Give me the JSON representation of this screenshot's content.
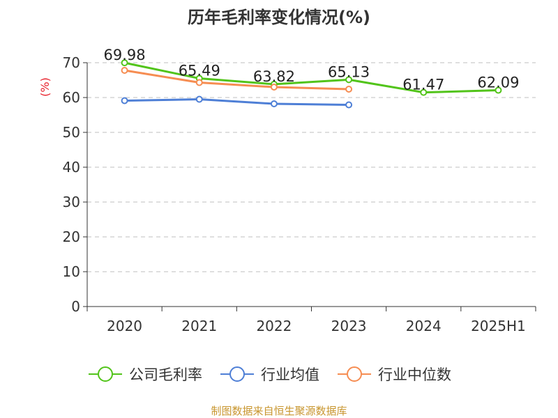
{
  "chart_data": {
    "type": "line",
    "title": "历年毛利率变化情况(%)",
    "ylabel": "(%)",
    "xlabel": "",
    "categories": [
      "2020",
      "2021",
      "2022",
      "2023",
      "2024",
      "2025H1"
    ],
    "ylim": [
      0,
      70
    ],
    "yticks": [
      0,
      10,
      20,
      30,
      40,
      50,
      60,
      70
    ],
    "grid": true,
    "legend_position": "bottom",
    "series": [
      {
        "name": "公司毛利率",
        "color": "#52c41a",
        "values": [
          69.98,
          65.49,
          63.82,
          65.13,
          61.47,
          62.09
        ],
        "labels": [
          "69.98",
          "65.49",
          "63.82",
          "65.13",
          "61.47",
          "62.09"
        ]
      },
      {
        "name": "行业均值",
        "color": "#4e7fd6",
        "values": [
          59.1,
          59.5,
          58.2,
          57.9,
          null,
          null
        ]
      },
      {
        "name": "行业中位数",
        "color": "#f68d52",
        "values": [
          67.8,
          64.3,
          63.0,
          62.4,
          null,
          null
        ]
      }
    ]
  },
  "footer": {
    "source": "制图数据来自恒生聚源数据库"
  }
}
